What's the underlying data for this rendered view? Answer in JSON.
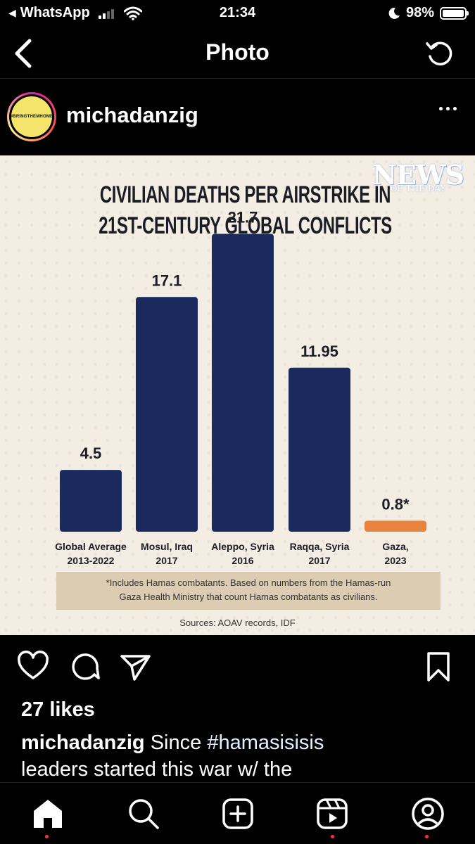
{
  "status_bar": {
    "back_app": "WhatsApp",
    "time": "21:34",
    "battery": "98%"
  },
  "nav": {
    "title": "Photo"
  },
  "post": {
    "username": "michadanzig",
    "avatar_text": "#BRINGTHEMHOME",
    "likes": "27 likes",
    "caption_user": "michadanzig",
    "caption_tag": "#hamasisisis",
    "caption_line1_pre": " Since ",
    "caption_line2": "leaders started this war w/ the"
  },
  "image": {
    "logo_main": "NEWS",
    "logo_sub": "OF THE DAY",
    "footnote_line1": "*Includes Hamas combatants. Based on numbers from the Hamas-run",
    "footnote_line2": "Gaza Health Ministry that count Hamas combatants as civilians.",
    "sources": "Sources: AOAV records, IDF"
  },
  "chart_data": {
    "type": "bar",
    "title_line1": "CIVILIAN DEATHS PER AIRSTRIKE IN",
    "title_line2": "21ST-CENTURY GLOBAL CONFLICTS",
    "categories": [
      [
        "Global Average",
        "2013-2022"
      ],
      [
        "Mosul, Iraq",
        "2017"
      ],
      [
        "Aleppo, Syria",
        "2016"
      ],
      [
        "Raqqa, Syria",
        "2017"
      ],
      [
        "Gaza,",
        "2023"
      ]
    ],
    "values": [
      4.5,
      17.1,
      21.7,
      11.95,
      0.8
    ],
    "value_labels": [
      "4.5",
      "17.1",
      "21.7",
      "11.95",
      "0.8*"
    ],
    "bar_colors": [
      "#1a2a5e",
      "#1a2a5e",
      "#1a2a5e",
      "#1a2a5e",
      "#e8823c"
    ],
    "ylim": [
      0,
      25
    ],
    "grid": false,
    "legend": "none"
  },
  "colors": {
    "bar": "#1a2a5e",
    "highlight_bar": "#e8823c",
    "background": "#f3ede3",
    "note_box": "#dccdb2",
    "notification_dot": "#ff3040"
  },
  "icons": {
    "nav_back": "chevron-left-icon",
    "nav_refresh": "refresh-icon",
    "more": "ellipsis-icon",
    "like": "heart-icon",
    "comment": "comment-icon",
    "share": "send-icon",
    "save": "bookmark-icon",
    "tabs": [
      "home-icon",
      "search-icon",
      "create-icon",
      "reels-icon",
      "profile-icon"
    ]
  }
}
